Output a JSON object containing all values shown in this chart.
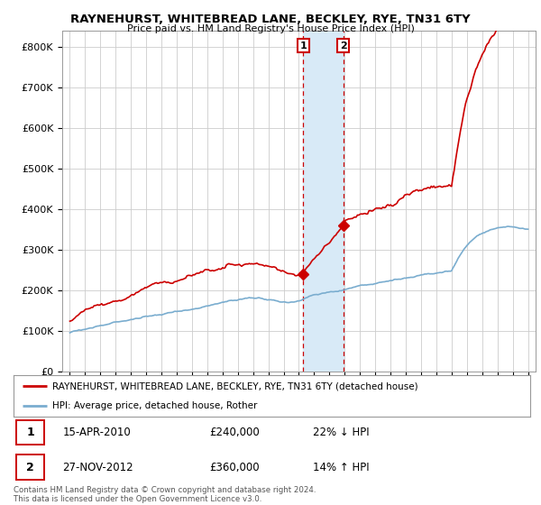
{
  "title": "RAYNEHURST, WHITEBREAD LANE, BECKLEY, RYE, TN31 6TY",
  "subtitle": "Price paid vs. HM Land Registry's House Price Index (HPI)",
  "legend_line1": "RAYNEHURST, WHITEBREAD LANE, BECKLEY, RYE, TN31 6TY (detached house)",
  "legend_line2": "HPI: Average price, detached house, Rother",
  "footnote": "Contains HM Land Registry data © Crown copyright and database right 2024.\nThis data is licensed under the Open Government Licence v3.0.",
  "sale1_date": "15-APR-2010",
  "sale1_price": "£240,000",
  "sale1_hpi": "22% ↓ HPI",
  "sale2_date": "27-NOV-2012",
  "sale2_price": "£360,000",
  "sale2_hpi": "14% ↑ HPI",
  "sale1_x": 2010.29,
  "sale1_y": 240000,
  "sale2_x": 2012.91,
  "sale2_y": 360000,
  "ylim": [
    0,
    840000
  ],
  "xlim": [
    1994.5,
    2025.5
  ],
  "red_color": "#cc0000",
  "blue_color": "#7aadcf",
  "background_color": "#ffffff",
  "grid_color": "#cccccc",
  "highlight_color": "#d8eaf7"
}
